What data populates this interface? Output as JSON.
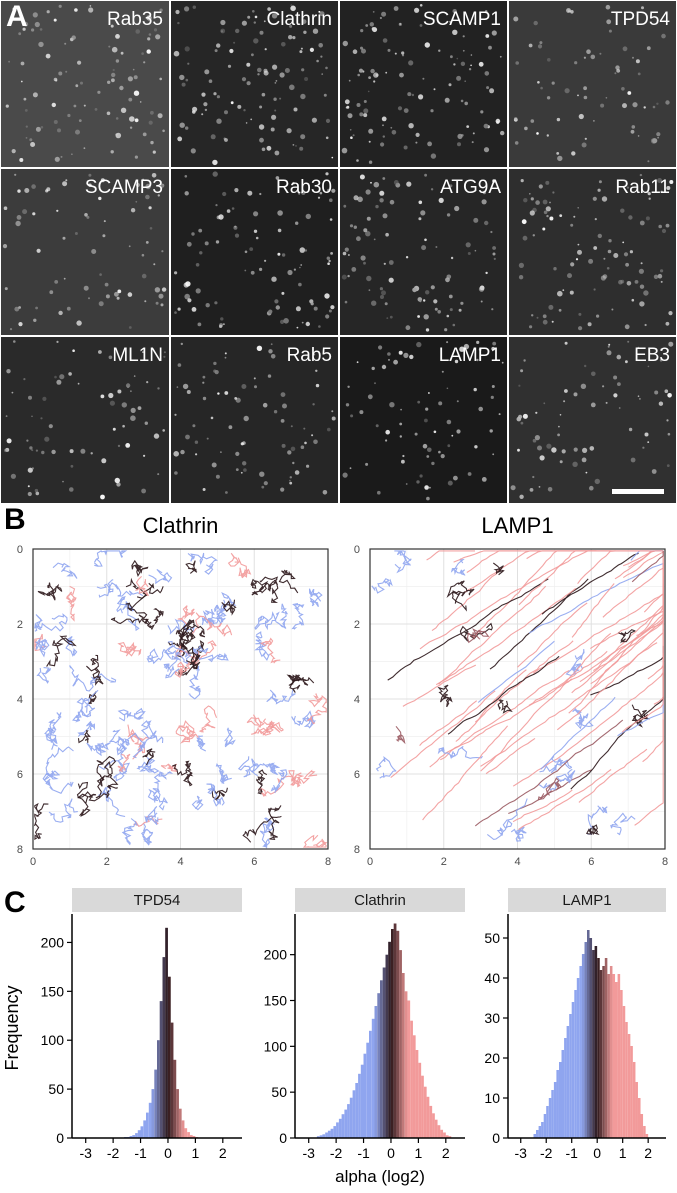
{
  "panel_letters": {
    "a": "A",
    "b": "B",
    "c": "C"
  },
  "panel_a": {
    "tiles": [
      "Rab35",
      "Clathrin",
      "SCAMP1",
      "TPD54",
      "SCAMP3",
      "Rab30",
      "ATG9A",
      "Rab11",
      "ML1N",
      "Rab5",
      "LAMP1",
      "EB3"
    ],
    "scale_bar": true
  },
  "chart_data": [
    {
      "type": "scatter",
      "title": "Clathrin",
      "description_kind": "trajectory plot",
      "xlim": [
        0,
        8
      ],
      "ylim": [
        0,
        8
      ],
      "y_reversed": true,
      "x_ticks": [
        "0",
        "2",
        "4",
        "6",
        "8"
      ],
      "y_ticks": [
        "0",
        "2",
        "4",
        "6",
        "8"
      ],
      "grid": true,
      "series_colors": {
        "subdiffusive": "#8fa5ef",
        "brownian": "#2a1518",
        "superdiffusive": "#f29a9a",
        "mixed": "#9a5a62"
      }
    },
    {
      "type": "scatter",
      "title": "LAMP1",
      "description_kind": "trajectory plot",
      "xlim": [
        0,
        8
      ],
      "ylim": [
        0,
        8
      ],
      "y_reversed": true,
      "x_ticks": [
        "0",
        "2",
        "4",
        "6",
        "8"
      ],
      "y_ticks": [
        "0",
        "2",
        "4",
        "6",
        "8"
      ],
      "grid": true,
      "series_colors": {
        "subdiffusive": "#8fa5ef",
        "brownian": "#2a1518",
        "superdiffusive": "#f29a9a",
        "mixed": "#9a5a62"
      }
    },
    {
      "type": "bar",
      "title": "TPD54",
      "xlabel": "",
      "ylabel": "Frequency",
      "x_ticks": [
        "-3",
        "-2",
        "-1",
        "0",
        "1",
        "2"
      ],
      "y_ticks": [
        "0",
        "50",
        "100",
        "150",
        "200"
      ],
      "ylim": [
        0,
        225
      ],
      "xlim": [
        -3.5,
        2.7
      ],
      "bin_width": 0.1,
      "bin_start": -1.6,
      "values": [
        1,
        1,
        2,
        3,
        5,
        8,
        12,
        18,
        26,
        36,
        50,
        70,
        100,
        140,
        185,
        215,
        165,
        118,
        80,
        50,
        30,
        18,
        10,
        6,
        3,
        2,
        1
      ]
    },
    {
      "type": "bar",
      "title": "Clathrin",
      "xlabel": "alpha (log2)",
      "ylabel": "",
      "x_ticks": [
        "-3",
        "-2",
        "-1",
        "0",
        "1",
        "2"
      ],
      "y_ticks": [
        "0",
        "50",
        "100",
        "150",
        "200"
      ],
      "ylim": [
        0,
        240
      ],
      "xlim": [
        -3.5,
        2.7
      ],
      "bin_width": 0.1,
      "bin_start": -2.7,
      "values": [
        2,
        3,
        4,
        6,
        8,
        10,
        13,
        17,
        21,
        26,
        31,
        37,
        44,
        52,
        60,
        70,
        80,
        92,
        104,
        117,
        130,
        144,
        158,
        172,
        186,
        200,
        214,
        228,
        234,
        226,
        205,
        180,
        160,
        150,
        128,
        112,
        96,
        82,
        68,
        56,
        45,
        35,
        27,
        20,
        14,
        9,
        6,
        3,
        2
      ]
    },
    {
      "type": "bar",
      "title": "LAMP1",
      "xlabel": "",
      "ylabel": "",
      "x_ticks": [
        "-3",
        "-2",
        "-1",
        "0",
        "1",
        "2"
      ],
      "y_ticks": [
        "0",
        "10",
        "20",
        "30",
        "40",
        "50"
      ],
      "ylim": [
        0,
        55
      ],
      "xlim": [
        -3.5,
        2.7
      ],
      "bin_width": 0.1,
      "bin_start": -2.5,
      "values": [
        1,
        2,
        3,
        4,
        6,
        8,
        10,
        12,
        14,
        17,
        19,
        22,
        25,
        28,
        31,
        34,
        37,
        40,
        43,
        46,
        49,
        52,
        50,
        47,
        48,
        45,
        42,
        43,
        45,
        41,
        43,
        41,
        39,
        41,
        37,
        33,
        29,
        26,
        23,
        19,
        14,
        10,
        6,
        3,
        1
      ]
    }
  ]
}
